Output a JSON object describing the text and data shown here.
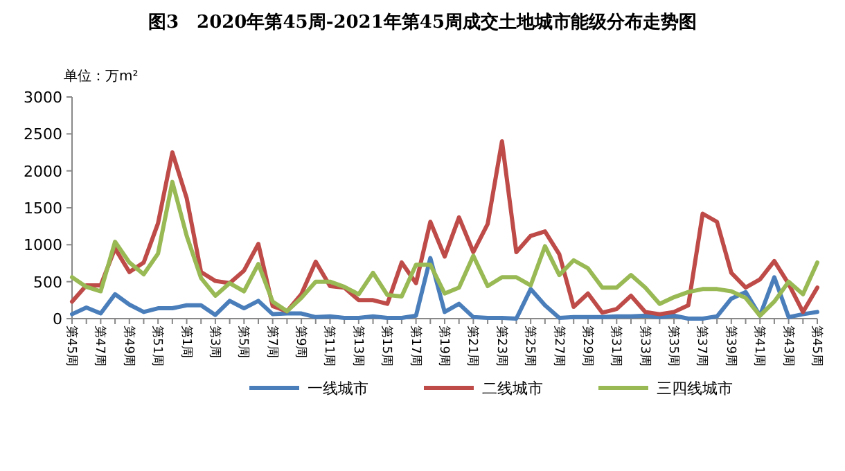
{
  "chart_data": {
    "type": "line",
    "title": "图3　2020年第45周-2021年第45周成交土地城市能级分布走势图",
    "ylabel": "单位：万m²",
    "categories": [
      "第45周",
      null,
      "第47周",
      null,
      "第49周",
      null,
      "第51周",
      null,
      "第1周",
      null,
      "第3周",
      null,
      "第5周",
      null,
      "第7周",
      null,
      "第9周",
      null,
      "第11周",
      null,
      "第13周",
      null,
      "第15周",
      null,
      "第17周",
      null,
      "第19周",
      null,
      "第21周",
      null,
      "第23周",
      null,
      "第25周",
      null,
      "第27周",
      null,
      "第29周",
      null,
      "第31周",
      null,
      "第33周",
      null,
      "第35周",
      null,
      "第37周",
      null,
      "第39周",
      null,
      "第41周",
      null,
      "第43周",
      null,
      "第45周"
    ],
    "series": [
      {
        "name": "一线城市",
        "color": "#4a7ebb",
        "values": [
          60,
          150,
          70,
          330,
          190,
          90,
          140,
          140,
          180,
          180,
          50,
          240,
          140,
          240,
          60,
          70,
          70,
          20,
          30,
          10,
          10,
          30,
          10,
          10,
          40,
          820,
          90,
          200,
          20,
          10,
          10,
          0,
          400,
          180,
          10,
          20,
          20,
          20,
          30,
          30,
          40,
          20,
          40,
          0,
          0,
          30,
          270,
          360,
          40,
          560,
          20,
          60,
          90
        ]
      },
      {
        "name": "二线城市",
        "color": "#be4b48",
        "values": [
          230,
          450,
          450,
          950,
          630,
          760,
          1290,
          2250,
          1630,
          630,
          510,
          480,
          650,
          1010,
          170,
          100,
          330,
          770,
          440,
          420,
          250,
          250,
          200,
          760,
          480,
          1310,
          840,
          1370,
          900,
          1280,
          2400,
          900,
          1120,
          1180,
          870,
          160,
          340,
          80,
          130,
          310,
          90,
          60,
          90,
          180,
          1420,
          1310,
          620,
          420,
          530,
          780,
          470,
          90,
          420
        ]
      },
      {
        "name": "三四线城市",
        "color": "#98b954",
        "values": [
          560,
          430,
          370,
          1040,
          760,
          600,
          880,
          1850,
          1120,
          550,
          310,
          480,
          370,
          740,
          230,
          100,
          280,
          500,
          500,
          430,
          330,
          620,
          320,
          300,
          730,
          730,
          340,
          420,
          850,
          440,
          560,
          560,
          450,
          980,
          590,
          790,
          680,
          420,
          420,
          590,
          420,
          200,
          290,
          360,
          400,
          400,
          370,
          280,
          40,
          230,
          500,
          330,
          760
        ]
      }
    ],
    "ylim": [
      0,
      3000
    ],
    "yticks": [
      0,
      500,
      1000,
      1500,
      2000,
      2500,
      3000
    ],
    "legend": "bottom",
    "grid": false,
    "marker": "none",
    "line_style": "solid"
  }
}
